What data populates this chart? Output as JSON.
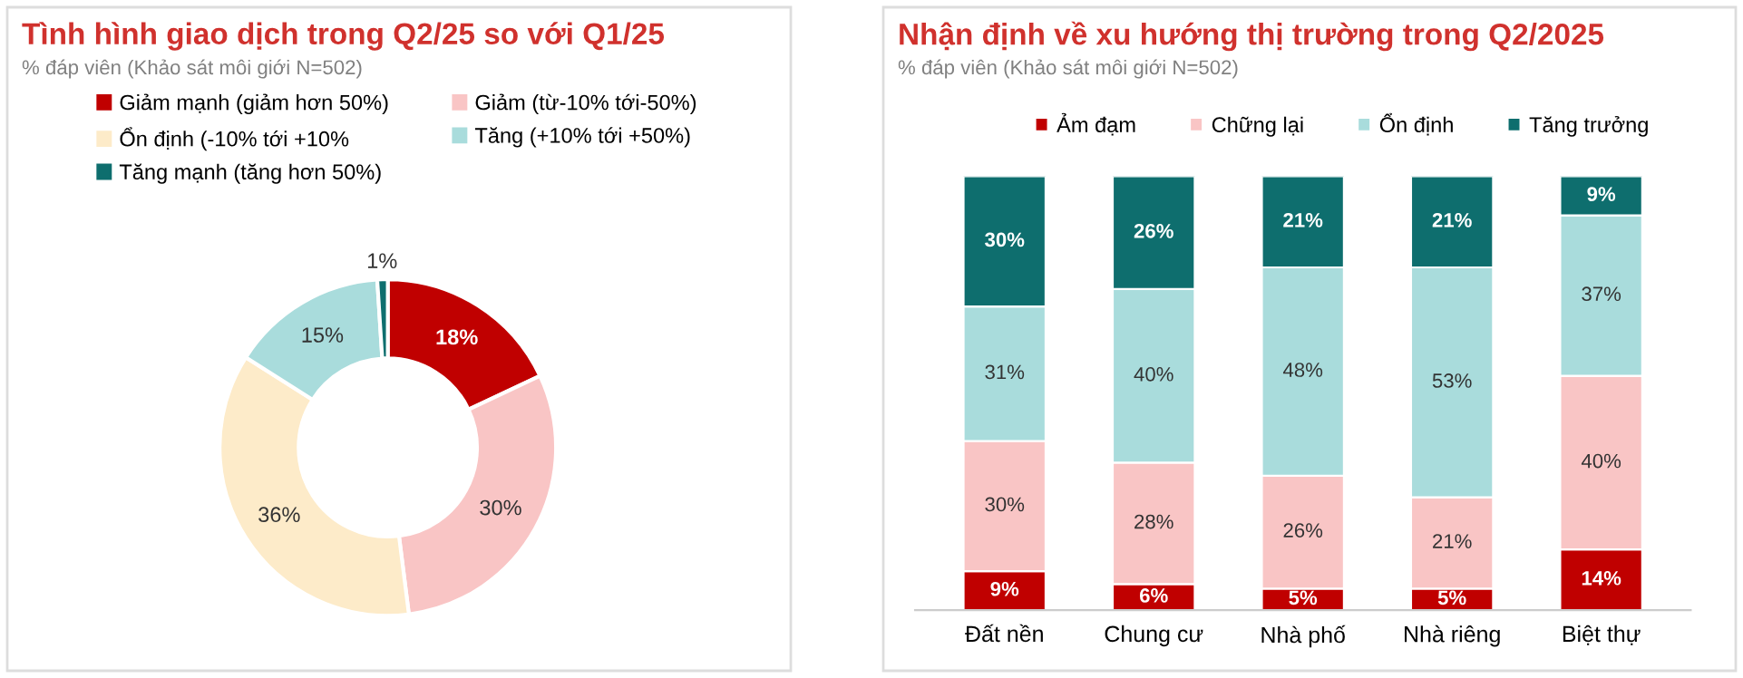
{
  "chart_data": [
    {
      "type": "donut",
      "title": "Tình hình giao dịch trong Q2/25 so với Q1/25",
      "subtitle": "% đáp viên (Khảo sát môi giới N=502)",
      "categories": [
        "Giảm mạnh (giảm hơn 50%)",
        "Giảm (từ-10% tới-50%)",
        "Ổn định (-10% tới +10%",
        "Tăng (+10% tới +50%)",
        "Tăng mạnh (tăng hơn 50%)"
      ],
      "values": [
        18,
        30,
        36,
        15,
        1
      ],
      "value_labels": [
        "18%",
        "30%",
        "36%",
        "15%",
        "1%"
      ],
      "colors": [
        "#c00000",
        "#f9c5c5",
        "#fdebc9",
        "#a9dcdc",
        "#0e6e6e"
      ],
      "legend": "top"
    },
    {
      "type": "bar",
      "stacked": true,
      "title": "Nhận định về xu hướng thị trường trong Q2/2025",
      "subtitle": "% đáp viên (Khảo sát môi giới N=502)",
      "categories": [
        "Đất nền",
        "Chung cư",
        "Nhà phố",
        "Nhà riêng",
        "Biệt thự"
      ],
      "series": [
        {
          "name": "Ảm đạm",
          "color": "#c00000",
          "values": [
            9,
            6,
            5,
            5,
            14
          ],
          "value_labels": [
            "9%",
            "6%",
            "5%",
            "5%",
            "14%"
          ]
        },
        {
          "name": "Chững lại",
          "color": "#f9c5c5",
          "values": [
            30,
            28,
            26,
            21,
            40
          ],
          "value_labels": [
            "30%",
            "28%",
            "26%",
            "21%",
            "40%"
          ]
        },
        {
          "name": "Ổn định",
          "color": "#a9dcdc",
          "values": [
            31,
            40,
            48,
            53,
            37
          ],
          "value_labels": [
            "31%",
            "40%",
            "48%",
            "53%",
            "37%"
          ]
        },
        {
          "name": "Tăng trưởng",
          "color": "#0e6e6e",
          "values": [
            30,
            26,
            21,
            21,
            9
          ],
          "value_labels": [
            "30%",
            "26%",
            "21%",
            "21%",
            "9%"
          ]
        }
      ],
      "legend": "top",
      "grid": false
    }
  ]
}
